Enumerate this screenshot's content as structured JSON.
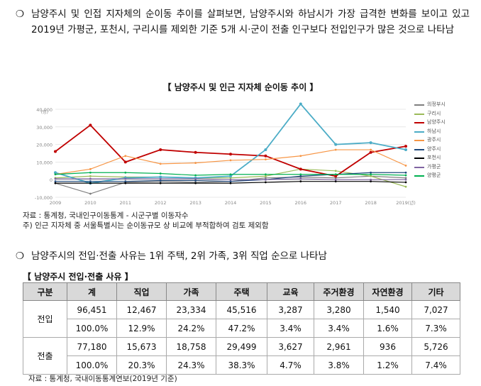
{
  "para1": {
    "bullet": "❍",
    "text": "남양주시 및 인접 지자체의 순이동 추이를 살펴보면, 남양주시와 하남시가 가장 급격한 변화를 보이고 있고 2019년 가평군, 포천시, 구리시를 제외한 기준 5개 시·군이 전출 인구보다 전입인구가 많은 것으로 나타남"
  },
  "chart": {
    "title": "【 남양주시 및 인근 지자체 순이동 추이 】",
    "source": "자료 : 통계청, 국내인구이동통계 - 시군구별 이동자수",
    "note": "주) 인근 지자체 중 서울특별시는 순이동규모 상 비교에 부적합하여 검토 제외함"
  },
  "chart_data": {
    "type": "line",
    "x": [
      "2009",
      "2010",
      "2011",
      "2012",
      "2013",
      "2014",
      "2015",
      "2016",
      "2017",
      "2018",
      "2019(년)"
    ],
    "ylabel": "(명)",
    "y_ticks": [
      "40,000",
      "30,000",
      "20,000",
      "10,000",
      "0",
      "-10,000"
    ],
    "ylim": [
      -10000,
      40000
    ],
    "series": [
      {
        "name": "의정부시",
        "color": "#7f7f7f",
        "values": [
          -2000,
          -8000,
          -1500,
          -1000,
          -1500,
          -1000,
          1000,
          1500,
          1000,
          2000,
          1000
        ]
      },
      {
        "name": "구리시",
        "color": "#9bbb59",
        "values": [
          1000,
          2000,
          1500,
          1500,
          1000,
          1000,
          2000,
          6000,
          5000,
          2000,
          -4000
        ]
      },
      {
        "name": "남양주시",
        "color": "#c00000",
        "values": [
          16000,
          31000,
          10000,
          17000,
          15500,
          14500,
          13500,
          6000,
          2000,
          15500,
          19000
        ]
      },
      {
        "name": "하남시",
        "color": "#4bacc6",
        "values": [
          4000,
          -2000,
          1000,
          1500,
          1000,
          2000,
          17000,
          43000,
          20000,
          21000,
          17000
        ]
      },
      {
        "name": "광주시",
        "color": "#f79646",
        "values": [
          3000,
          6000,
          13500,
          9000,
          9500,
          11000,
          11500,
          13500,
          17000,
          17000,
          8000
        ]
      },
      {
        "name": "양주시",
        "color": "#1f497d",
        "values": [
          -1000,
          -1000,
          -1000,
          -500,
          -500,
          -1000,
          0,
          2000,
          3000,
          4000,
          4000
        ]
      },
      {
        "name": "포천시",
        "color": "#000000",
        "values": [
          -2000,
          -2000,
          -2000,
          -2000,
          -2000,
          -2000,
          -1500,
          -1000,
          -1000,
          -1000,
          -1500
        ]
      },
      {
        "name": "가평군",
        "color": "#8064a2",
        "values": [
          500,
          500,
          500,
          500,
          500,
          0,
          0,
          500,
          0,
          0,
          0
        ]
      },
      {
        "name": "양평군",
        "color": "#00b050",
        "values": [
          3000,
          4000,
          4000,
          3500,
          2500,
          3000,
          3000,
          3000,
          3000,
          3000,
          2500
        ]
      }
    ]
  },
  "para2": {
    "bullet": "❍",
    "text": "남양주시의 전입·전출 사유는 1위 주택, 2위 가족, 3위 직업 순으로 나타남"
  },
  "table": {
    "title": "【 남양주시 전입·전출 사유 】",
    "headers": [
      "구분",
      "계",
      "직업",
      "가족",
      "주택",
      "교육",
      "주거환경",
      "자연환경",
      "기타"
    ],
    "groups": [
      {
        "label": "전입",
        "rows": [
          [
            "96,451",
            "12,467",
            "23,334",
            "45,516",
            "3,287",
            "3,280",
            "1,540",
            "7,027"
          ],
          [
            "100.0%",
            "12.9%",
            "24.2%",
            "47.2%",
            "3.4%",
            "3.4%",
            "1.6%",
            "7.3%"
          ]
        ]
      },
      {
        "label": "전출",
        "rows": [
          [
            "77,180",
            "15,673",
            "18,758",
            "29,499",
            "3,627",
            "2,961",
            "936",
            "5,726"
          ],
          [
            "100.0%",
            "20.3%",
            "24.3%",
            "38.3%",
            "4.7%",
            "3.8%",
            "1.2%",
            "7.4%"
          ]
        ]
      }
    ],
    "source": "자료 : 통계청, 국내이동통계연보(2019년 기준)"
  }
}
